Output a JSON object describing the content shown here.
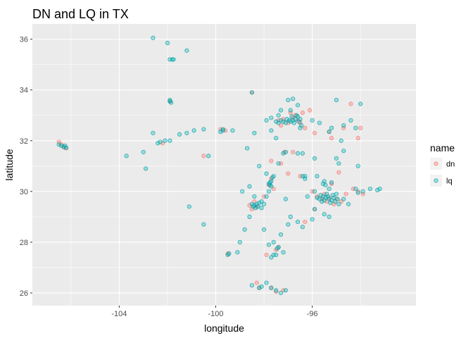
{
  "chart_data": {
    "type": "scatter",
    "title": "DN and LQ in TX",
    "xlabel": "longitude",
    "ylabel": "latitude",
    "xlim": [
      -107.6,
      -91.7
    ],
    "ylim": [
      25.5,
      36.6
    ],
    "x_ticks": [
      -104,
      -100,
      -96
    ],
    "x_tick_labels": [
      "-104",
      "-100",
      "-96"
    ],
    "y_ticks": [
      26,
      28,
      30,
      32,
      34,
      36
    ],
    "y_tick_labels": [
      "26",
      "28",
      "30",
      "32",
      "34",
      "36"
    ],
    "grid": true,
    "legend_title": "name",
    "legend_position": "right",
    "series": [
      {
        "name": "dn",
        "color": "#F8766D",
        "points": [
          [
            -106.5,
            31.95
          ],
          [
            -106.4,
            31.85
          ],
          [
            -106.3,
            31.75
          ],
          [
            -106.2,
            31.7
          ],
          [
            -97.4,
            32.8
          ],
          [
            -97.2,
            32.85
          ],
          [
            -97.0,
            32.7
          ],
          [
            -96.8,
            32.9
          ],
          [
            -96.7,
            33.0
          ],
          [
            -96.6,
            32.8
          ],
          [
            -96.9,
            33.1
          ],
          [
            -97.3,
            32.6
          ],
          [
            -96.5,
            32.7
          ],
          [
            -96.4,
            33.1
          ],
          [
            -96.3,
            32.5
          ],
          [
            -95.9,
            32.3
          ],
          [
            -95.3,
            32.35
          ],
          [
            -94.4,
            33.45
          ],
          [
            -94.0,
            32.5
          ],
          [
            -94.1,
            32.1
          ],
          [
            -94.7,
            32.5
          ],
          [
            -95.2,
            32.1
          ],
          [
            -96.1,
            33.2
          ],
          [
            -97.7,
            31.2
          ],
          [
            -97.3,
            31.1
          ],
          [
            -97.15,
            31.55
          ],
          [
            -97.0,
            30.7
          ],
          [
            -97.7,
            30.5
          ],
          [
            -97.8,
            30.25
          ],
          [
            -97.6,
            30.1
          ],
          [
            -98.0,
            29.8
          ],
          [
            -98.4,
            29.6
          ],
          [
            -98.6,
            29.45
          ],
          [
            -98.3,
            29.4
          ],
          [
            -98.5,
            29.3
          ],
          [
            -96.5,
            30.6
          ],
          [
            -96.0,
            30.0
          ],
          [
            -95.8,
            29.8
          ],
          [
            -95.6,
            29.7
          ],
          [
            -95.5,
            29.9
          ],
          [
            -95.3,
            29.75
          ],
          [
            -95.4,
            29.6
          ],
          [
            -95.1,
            29.5
          ],
          [
            -95.0,
            29.7
          ],
          [
            -94.8,
            29.6
          ],
          [
            -94.6,
            29.9
          ],
          [
            -94.3,
            30.1
          ],
          [
            -94.1,
            30.0
          ],
          [
            -95.2,
            30.3
          ],
          [
            -95.9,
            29.3
          ],
          [
            -96.3,
            28.8
          ],
          [
            -97.4,
            27.8
          ],
          [
            -97.5,
            27.7
          ],
          [
            -98.3,
            26.4
          ],
          [
            -98.2,
            26.2
          ],
          [
            -97.7,
            26.2
          ],
          [
            -97.5,
            26.05
          ],
          [
            -97.2,
            26.1
          ],
          [
            -99.6,
            32.4
          ],
          [
            -99.8,
            32.45
          ],
          [
            -101.9,
            33.55
          ],
          [
            -98.5,
            33.9
          ],
          [
            -100.5,
            31.4
          ],
          [
            -102.2,
            31.9
          ],
          [
            -99.5,
            27.55
          ],
          [
            -97.9,
            27.5
          ],
          [
            -96.8,
            31.55
          ],
          [
            -94.9,
            30.75
          ],
          [
            -93.9,
            29.9
          ]
        ]
      },
      {
        "name": "lq",
        "color": "#00BFC4",
        "points": [
          [
            -106.5,
            31.85
          ],
          [
            -106.4,
            31.8
          ],
          [
            -106.3,
            31.75
          ],
          [
            -106.25,
            31.8
          ],
          [
            -106.2,
            31.72
          ],
          [
            -102.6,
            36.05
          ],
          [
            -102.0,
            35.85
          ],
          [
            -101.9,
            35.2
          ],
          [
            -101.8,
            35.2
          ],
          [
            -101.75,
            35.2
          ],
          [
            -101.2,
            35.55
          ],
          [
            -101.9,
            33.55
          ],
          [
            -101.85,
            33.5
          ],
          [
            -101.9,
            33.6
          ],
          [
            -102.6,
            32.3
          ],
          [
            -102.4,
            31.9
          ],
          [
            -102.3,
            31.95
          ],
          [
            -102.1,
            32.0
          ],
          [
            -101.9,
            32.0
          ],
          [
            -101.5,
            32.25
          ],
          [
            -101.2,
            32.3
          ],
          [
            -100.9,
            32.4
          ],
          [
            -100.5,
            32.45
          ],
          [
            -103.0,
            31.55
          ],
          [
            -102.9,
            30.9
          ],
          [
            -103.7,
            31.4
          ],
          [
            -100.3,
            31.4
          ],
          [
            -101.1,
            29.4
          ],
          [
            -100.5,
            28.7
          ],
          [
            -99.5,
            27.5
          ],
          [
            -99.45,
            27.55
          ],
          [
            -98.8,
            28.5
          ],
          [
            -98.6,
            29.0
          ],
          [
            -98.5,
            29.5
          ],
          [
            -98.45,
            29.4
          ],
          [
            -98.4,
            29.45
          ],
          [
            -98.3,
            29.5
          ],
          [
            -98.2,
            29.55
          ],
          [
            -98.35,
            29.35
          ],
          [
            -98.25,
            29.4
          ],
          [
            -98.1,
            29.6
          ],
          [
            -98.0,
            29.5
          ],
          [
            -97.9,
            29.8
          ],
          [
            -97.8,
            30.3
          ],
          [
            -97.75,
            30.25
          ],
          [
            -97.7,
            30.4
          ],
          [
            -97.7,
            30.2
          ],
          [
            -97.75,
            30.35
          ],
          [
            -97.65,
            30.55
          ],
          [
            -97.8,
            30.0
          ],
          [
            -97.6,
            30.6
          ],
          [
            -97.9,
            30.7
          ],
          [
            -97.4,
            31.1
          ],
          [
            -97.2,
            31.5
          ],
          [
            -97.1,
            31.55
          ],
          [
            -96.3,
            30.6
          ],
          [
            -96.9,
            29.0
          ],
          [
            -97.3,
            28.3
          ],
          [
            -97.4,
            27.8
          ],
          [
            -97.45,
            27.75
          ],
          [
            -97.6,
            27.5
          ],
          [
            -97.7,
            27.4
          ],
          [
            -97.8,
            27.9
          ],
          [
            -97.5,
            27.5
          ],
          [
            -97.6,
            28.0
          ],
          [
            -97.2,
            27.6
          ],
          [
            -97.9,
            26.4
          ],
          [
            -98.2,
            26.2
          ],
          [
            -98.1,
            26.25
          ],
          [
            -97.7,
            26.2
          ],
          [
            -97.3,
            26.0
          ],
          [
            -97.5,
            26.1
          ],
          [
            -97.1,
            26.1
          ],
          [
            -98.5,
            26.3
          ],
          [
            -99.1,
            27.6
          ],
          [
            -99.0,
            28.0
          ],
          [
            -98.0,
            28.5
          ],
          [
            -98.9,
            30.0
          ],
          [
            -98.6,
            30.2
          ],
          [
            -98.2,
            31.0
          ],
          [
            -98.7,
            31.7
          ],
          [
            -99.3,
            32.4
          ],
          [
            -99.7,
            32.45
          ],
          [
            -99.8,
            32.35
          ],
          [
            -98.4,
            32.3
          ],
          [
            -97.3,
            33.2
          ],
          [
            -97.9,
            32.8
          ],
          [
            -97.7,
            32.9
          ],
          [
            -97.5,
            32.75
          ],
          [
            -97.4,
            32.7
          ],
          [
            -97.3,
            32.8
          ],
          [
            -97.2,
            32.75
          ],
          [
            -97.1,
            32.7
          ],
          [
            -97.05,
            32.85
          ],
          [
            -96.95,
            32.8
          ],
          [
            -96.9,
            32.75
          ],
          [
            -96.85,
            32.95
          ],
          [
            -96.8,
            32.8
          ],
          [
            -96.75,
            32.7
          ],
          [
            -96.7,
            32.85
          ],
          [
            -96.65,
            33.0
          ],
          [
            -96.6,
            32.95
          ],
          [
            -96.55,
            32.75
          ],
          [
            -96.5,
            32.85
          ],
          [
            -96.45,
            32.6
          ],
          [
            -96.9,
            33.2
          ],
          [
            -97.0,
            33.6
          ],
          [
            -96.8,
            33.65
          ],
          [
            -96.6,
            33.4
          ],
          [
            -97.4,
            33.0
          ],
          [
            -97.7,
            32.4
          ],
          [
            -97.5,
            32.1
          ],
          [
            -96.5,
            32.5
          ],
          [
            -96.0,
            32.8
          ],
          [
            -95.7,
            32.7
          ],
          [
            -95.3,
            32.35
          ],
          [
            -95.2,
            32.5
          ],
          [
            -95.0,
            33.6
          ],
          [
            -94.7,
            32.6
          ],
          [
            -94.4,
            32.8
          ],
          [
            -94.0,
            33.45
          ],
          [
            -94.2,
            32.5
          ],
          [
            -94.8,
            32.0
          ],
          [
            -95.9,
            31.3
          ],
          [
            -95.0,
            31.3
          ],
          [
            -94.7,
            31.6
          ],
          [
            -94.1,
            31.0
          ],
          [
            -96.4,
            31.5
          ],
          [
            -96.4,
            30.6
          ],
          [
            -96.3,
            30.5
          ],
          [
            -95.9,
            29.3
          ],
          [
            -95.9,
            30.0
          ],
          [
            -95.8,
            29.75
          ],
          [
            -95.7,
            29.7
          ],
          [
            -95.65,
            29.85
          ],
          [
            -95.6,
            29.6
          ],
          [
            -95.55,
            29.8
          ],
          [
            -95.5,
            29.65
          ],
          [
            -95.45,
            29.75
          ],
          [
            -95.4,
            29.9
          ],
          [
            -95.35,
            29.8
          ],
          [
            -95.3,
            29.7
          ],
          [
            -95.25,
            29.55
          ],
          [
            -95.2,
            29.65
          ],
          [
            -95.15,
            29.85
          ],
          [
            -95.1,
            29.75
          ],
          [
            -95.05,
            29.6
          ],
          [
            -95.0,
            29.9
          ],
          [
            -94.95,
            29.7
          ],
          [
            -94.9,
            29.5
          ],
          [
            -95.3,
            30.1
          ],
          [
            -95.45,
            30.25
          ],
          [
            -95.2,
            30.35
          ],
          [
            -95.5,
            30.4
          ],
          [
            -95.55,
            30.3
          ],
          [
            -94.7,
            29.7
          ],
          [
            -94.5,
            29.5
          ],
          [
            -94.2,
            30.1
          ],
          [
            -94.1,
            29.95
          ],
          [
            -93.9,
            30.0
          ],
          [
            -93.6,
            30.1
          ],
          [
            -93.3,
            30.05
          ],
          [
            -93.2,
            30.1
          ],
          [
            -95.3,
            29.0
          ],
          [
            -95.5,
            29.1
          ],
          [
            -96.0,
            28.9
          ],
          [
            -96.6,
            28.8
          ],
          [
            -96.4,
            28.6
          ],
          [
            -97.0,
            28.7
          ],
          [
            -95.8,
            30.6
          ],
          [
            -96.6,
            31.5
          ],
          [
            -94.9,
            31.1
          ],
          [
            -98.5,
            33.9
          ],
          [
            -99.7,
            32.4
          ],
          [
            -98.4,
            29.8
          ],
          [
            -98.1,
            29.35
          ],
          [
            -97.1,
            29.7
          ],
          [
            -96.2,
            29.8
          ]
        ]
      }
    ]
  }
}
